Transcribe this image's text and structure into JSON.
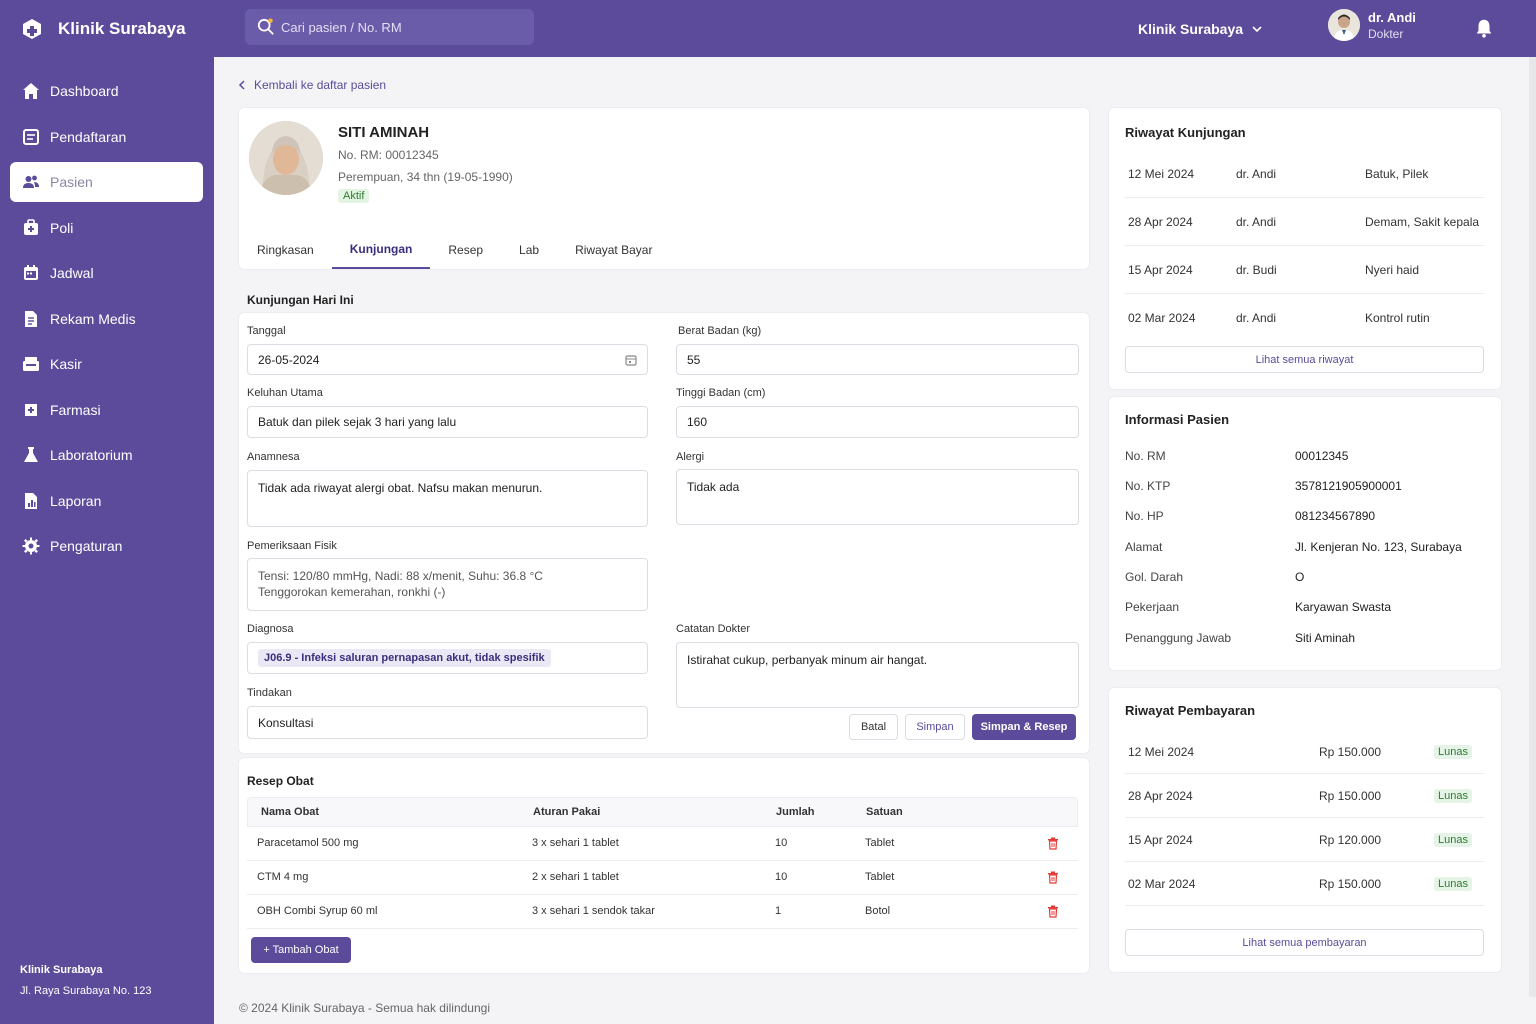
{
  "app": {
    "name": "Klinik Surabaya",
    "search_placeholder": "Cari pasien / No. RM",
    "clinic_selector": "Klinik Surabaya",
    "user": {
      "name": "dr. Andi",
      "role": "Dokter"
    },
    "accent_color": "#5b4b9a"
  },
  "sidebar": {
    "items": [
      {
        "label": "Dashboard",
        "icon": "home-icon"
      },
      {
        "label": "Pendaftaran",
        "icon": "register-icon"
      },
      {
        "label": "Pasien",
        "icon": "users-icon",
        "active": true
      },
      {
        "label": "Poli",
        "icon": "clinic-icon"
      },
      {
        "label": "Jadwal",
        "icon": "calendar-icon"
      },
      {
        "label": "Rekam Medis",
        "icon": "document-icon"
      },
      {
        "label": "Kasir",
        "icon": "cashier-icon"
      },
      {
        "label": "Farmasi",
        "icon": "pill-icon"
      },
      {
        "label": "Laboratorium",
        "icon": "flask-icon"
      },
      {
        "label": "Laporan",
        "icon": "report-icon"
      },
      {
        "label": "Pengaturan",
        "icon": "gear-icon"
      }
    ],
    "footer_name": "Klinik Surabaya",
    "footer_address": "Jl. Raya Surabaya No. 123"
  },
  "back_link": "Kembali ke daftar pasien",
  "patient": {
    "name": "SITI AMINAH",
    "rm": "No. RM: 00012345",
    "info": "Perempuan, 34 thn (19-05-1990)",
    "status": "Aktif"
  },
  "tabs": [
    "Ringkasan",
    "Kunjungan",
    "Resep",
    "Lab",
    "Riwayat Bayar"
  ],
  "visit": {
    "title": "Kunjungan Hari Ini",
    "tanggal_label": "Tanggal",
    "tanggal": "26-05-2024",
    "keluhan_label": "Keluhan Utama",
    "keluhan": "Batuk dan pilek sejak 3 hari yang lalu",
    "anamnesa_label": "Anamnesa",
    "anamnesa": "Tidak ada riwayat alergi obat. Nafsu makan menurun.",
    "pemeriksaan_label": "Pemeriksaan Fisik",
    "pemeriksaan": "Tensi: 120/80 mmHg, Nadi: 88 x/menit, Suhu: 36.8 °C\nTenggorokan kemerahan, ronkhi (-)",
    "diagnosa_label": "Diagnosa",
    "diagnosa": "J06.9 - Infeksi saluran pernapasan akut, tidak spesifik",
    "tindakan_label": "Tindakan",
    "tindakan": "Konsultasi",
    "berat_label": "Berat Badan (kg)",
    "berat": "55",
    "tinggi_label": "Tinggi Badan (cm)",
    "tinggi": "160",
    "alergi_label": "Alergi",
    "alergi": "Tidak ada",
    "catatan_label": "Catatan Dokter",
    "catatan": "Istirahat cukup, perbanyak minum air hangat.",
    "btn_batal": "Batal",
    "btn_simpan": "Simpan",
    "btn_simpan_resep": "Simpan & Resep"
  },
  "resep": {
    "title": "Resep Obat",
    "headers": [
      "Nama Obat",
      "Aturan Pakai",
      "Jumlah",
      "Satuan"
    ],
    "rows": [
      [
        "Paracetamol 500 mg",
        "3 x sehari 1 tablet",
        "10",
        "Tablet"
      ],
      [
        "CTM 4 mg",
        "2 x sehari 1 tablet",
        "10",
        "Tablet"
      ],
      [
        "OBH Combi Syrup 60 ml",
        "3 x sehari 1 sendok takar",
        "1",
        "Botol"
      ]
    ],
    "add_button": "+ Tambah Obat"
  },
  "riwayat_kunjungan": {
    "title": "Riwayat Kunjungan",
    "rows": [
      [
        "12 Mei 2024",
        "dr. Andi",
        "Batuk, Pilek"
      ],
      [
        "28 Apr 2024",
        "dr. Andi",
        "Demam, Sakit kepala"
      ],
      [
        "15 Apr 2024",
        "dr. Budi",
        "Nyeri haid"
      ],
      [
        "02 Mar 2024",
        "dr. Andi",
        "Kontrol rutin"
      ]
    ],
    "link": "Lihat semua riwayat"
  },
  "informasi_pasien": {
    "title": "Informasi Pasien",
    "rows": [
      [
        "No. RM",
        "00012345"
      ],
      [
        "No. KTP",
        "3578121905900001"
      ],
      [
        "No. HP",
        "081234567890"
      ],
      [
        "Alamat",
        "Jl. Kenjeran No. 123, Surabaya"
      ],
      [
        "Gol. Darah",
        "O"
      ],
      [
        "Pekerjaan",
        "Karyawan Swasta"
      ],
      [
        "Penanggung Jawab",
        "Siti Aminah"
      ]
    ]
  },
  "riwayat_pembayaran": {
    "title": "Riwayat Pembayaran",
    "rows": [
      [
        "12 Mei 2024",
        "Rp 150.000",
        "Lunas"
      ],
      [
        "28 Apr 2024",
        "Rp 150.000",
        "Lunas"
      ],
      [
        "15 Apr 2024",
        "Rp 120.000",
        "Lunas"
      ],
      [
        "02 Mar 2024",
        "Rp 150.000",
        "Lunas"
      ]
    ],
    "link": "Lihat semua pembayaran"
  },
  "footer": "© 2024 Klinik Surabaya - Semua hak dilindungi"
}
